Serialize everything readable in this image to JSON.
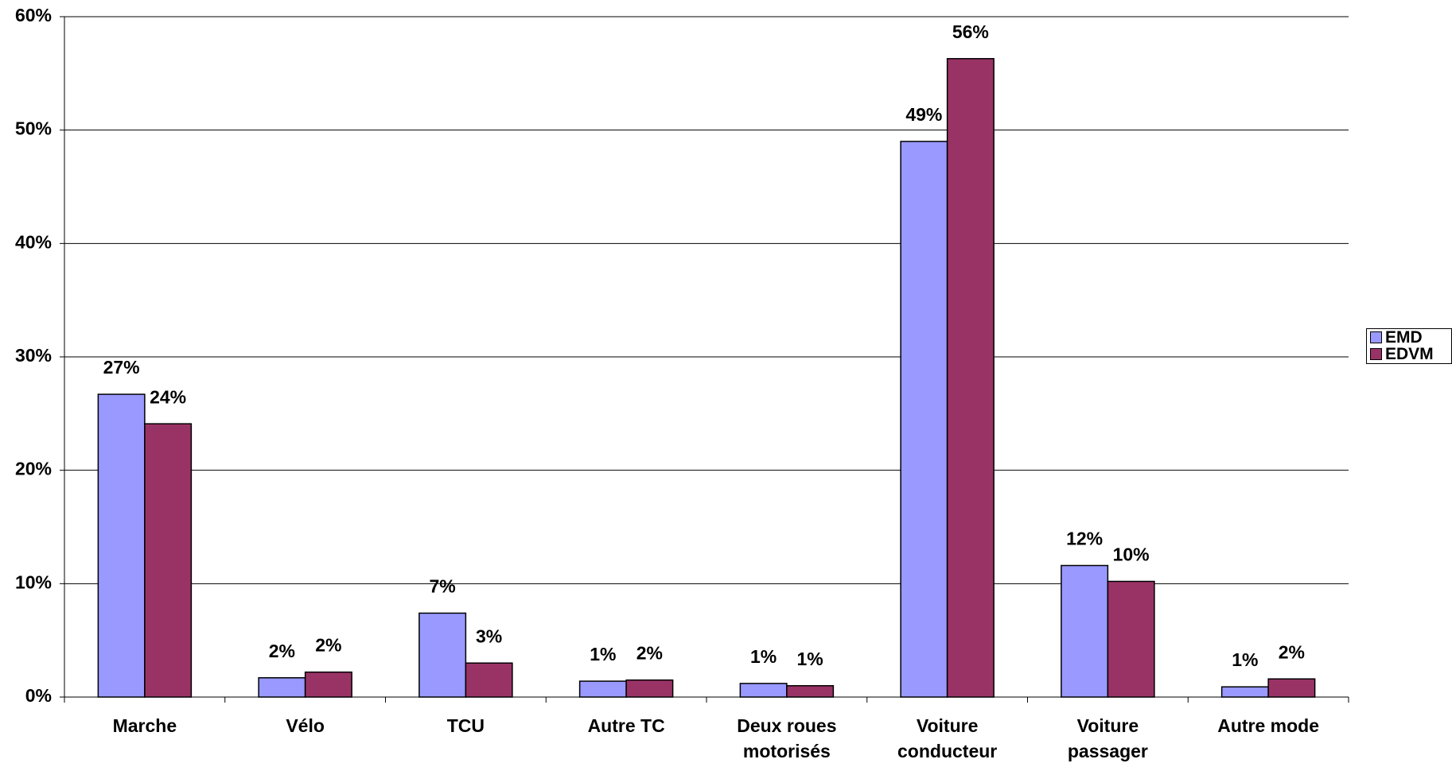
{
  "chart_data": {
    "type": "bar",
    "categories": [
      "Marche",
      "Vélo",
      "TCU",
      "Autre TC",
      "Deux roues motorisés",
      "Voiture conducteur",
      "Voiture passager",
      "Autre mode"
    ],
    "series": [
      {
        "name": "EMD",
        "color": "#9999ff",
        "values": [
          26.7,
          1.7,
          7.4,
          1.4,
          1.2,
          49.0,
          11.6,
          0.9
        ],
        "value_labels": [
          "27%",
          "2%",
          "7%",
          "1%",
          "1%",
          "49%",
          "12%",
          "1%"
        ]
      },
      {
        "name": "EDVM",
        "color": "#993366",
        "values": [
          24.1,
          2.2,
          3.0,
          1.5,
          1.0,
          56.3,
          10.2,
          1.6
        ],
        "value_labels": [
          "24%",
          "2%",
          "3%",
          "2%",
          "1%",
          "56%",
          "10%",
          "2%"
        ]
      }
    ],
    "ylim": [
      0,
      60
    ],
    "yticks": [
      {
        "value": 0,
        "label": "0%"
      },
      {
        "value": 10,
        "label": "10%"
      },
      {
        "value": 20,
        "label": "20%"
      },
      {
        "value": 30,
        "label": "30%"
      },
      {
        "value": 40,
        "label": "40%"
      },
      {
        "value": 50,
        "label": "50%"
      },
      {
        "value": 60,
        "label": "60%"
      }
    ],
    "grid": true,
    "legend": "right"
  }
}
